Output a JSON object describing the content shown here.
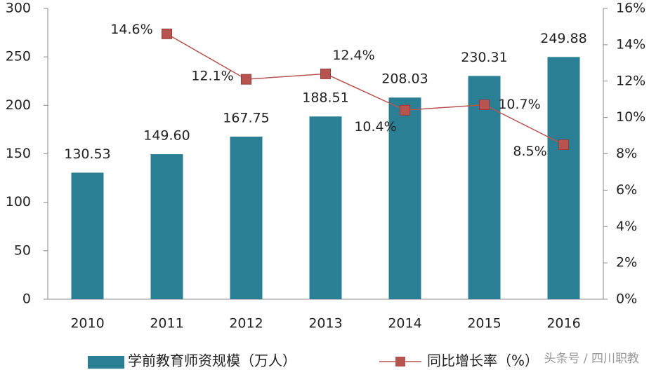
{
  "chart_data": {
    "type": "bar",
    "categories": [
      "2010",
      "2011",
      "2012",
      "2013",
      "2014",
      "2015",
      "2016"
    ],
    "series": [
      {
        "name": "学前教育师资规模（万人）",
        "color": "#2b7f95",
        "values": [
          130.53,
          149.6,
          167.75,
          188.51,
          208.03,
          230.31,
          249.88
        ],
        "value_labels": [
          "130.53",
          "149.60",
          "167.75",
          "188.51",
          "208.03",
          "230.31",
          "249.88"
        ]
      },
      {
        "name": "同比增长率（%）",
        "type": "line",
        "axis": "y2",
        "color": "#b85450",
        "values": [
          null,
          14.6,
          12.1,
          12.4,
          10.4,
          10.7,
          8.5
        ],
        "value_labels": [
          null,
          "14.6%",
          "12.1%",
          "12.4%",
          "10.4%",
          "10.7%",
          "8.5%"
        ]
      }
    ],
    "ylim": [
      0,
      300
    ],
    "yticks": [
      0,
      50,
      100,
      150,
      200,
      250,
      300
    ],
    "y2lim": [
      0,
      16
    ],
    "y2ticks": [
      {
        "value": 0,
        "label": "0%"
      },
      {
        "value": 2,
        "label": "2%"
      },
      {
        "value": 4,
        "label": "4%"
      },
      {
        "value": 6,
        "label": "6%"
      },
      {
        "value": 8,
        "label": "8%"
      },
      {
        "value": 10,
        "label": "10%"
      },
      {
        "value": 12,
        "label": "12%"
      },
      {
        "value": 14,
        "label": "14%"
      },
      {
        "value": 16,
        "label": "16%"
      }
    ],
    "watermark": "头条号 / 四川职教"
  }
}
